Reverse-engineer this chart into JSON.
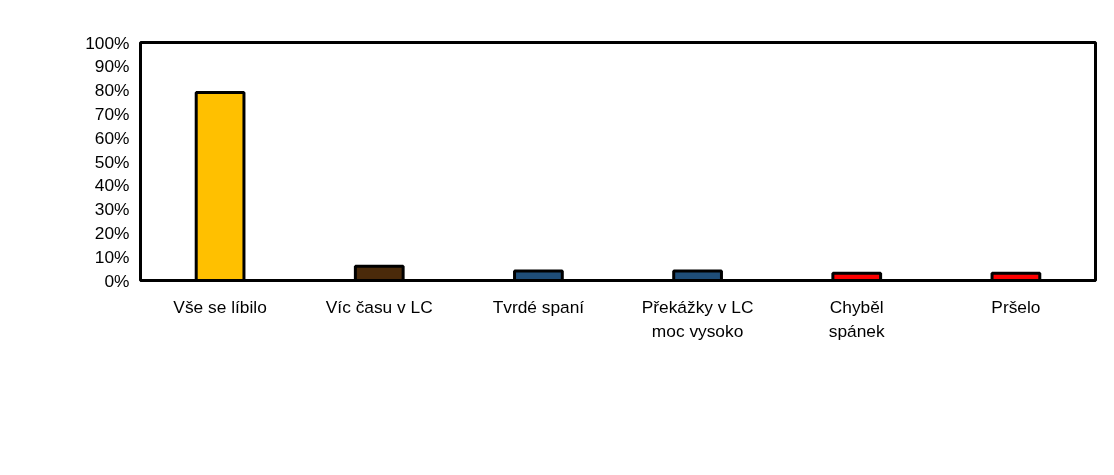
{
  "chart_data": {
    "type": "bar",
    "categories": [
      "Vše se líbilo",
      "Víc času v LC",
      "Tvrdé spaní",
      "Překážky v LC\nmoc vysoko",
      "Chyběl\nspánek",
      "Pršelo"
    ],
    "values": [
      79,
      6,
      4,
      4,
      3,
      3
    ],
    "colors": [
      "#ffc000",
      "#4a2a0a",
      "#1f4e79",
      "#1f4e79",
      "#ff0000",
      "#ff0000"
    ],
    "ylim": [
      0,
      100
    ],
    "yticks": [
      {
        "value": 0,
        "label": "0%"
      },
      {
        "value": 10,
        "label": "10%"
      },
      {
        "value": 20,
        "label": "20%"
      },
      {
        "value": 30,
        "label": "30%"
      },
      {
        "value": 40,
        "label": "40%"
      },
      {
        "value": 50,
        "label": "50%"
      },
      {
        "value": 60,
        "label": "60%"
      },
      {
        "value": 70,
        "label": "70%"
      },
      {
        "value": 80,
        "label": "80%"
      },
      {
        "value": 90,
        "label": "90%"
      },
      {
        "value": 100,
        "label": "100%"
      }
    ],
    "grid": false
  }
}
